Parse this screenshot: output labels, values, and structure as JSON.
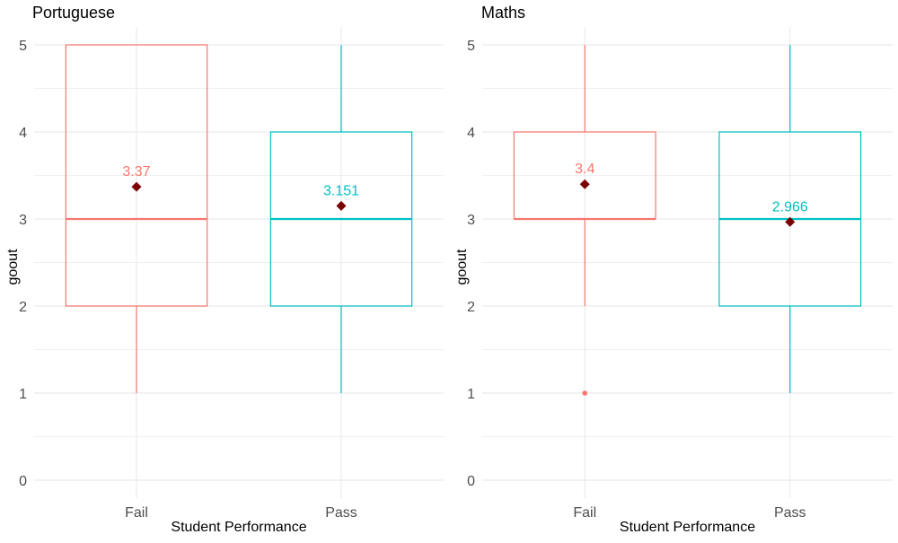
{
  "chart_data": [
    {
      "type": "boxplot",
      "title": "Portuguese",
      "xlabel": "Student Performance",
      "ylabel": "goout",
      "ylim": [
        0,
        5
      ],
      "yticks": [
        0,
        1,
        2,
        3,
        4,
        5
      ],
      "grid": true,
      "categories": [
        "Fail",
        "Pass"
      ],
      "boxes": [
        {
          "category": "Fail",
          "min": 1,
          "q1": 2,
          "median": 3,
          "q3": 5,
          "max": 5,
          "mean": 3.37,
          "mean_label": "3.37",
          "outliers": []
        },
        {
          "category": "Pass",
          "min": 1,
          "q1": 2,
          "median": 3,
          "q3": 4,
          "max": 5,
          "mean": 3.151,
          "mean_label": "3.151",
          "outliers": []
        }
      ]
    },
    {
      "type": "boxplot",
      "title": "Maths",
      "xlabel": "Student Performance",
      "ylabel": "goout",
      "ylim": [
        0,
        5
      ],
      "yticks": [
        0,
        1,
        2,
        3,
        4,
        5
      ],
      "grid": true,
      "categories": [
        "Fail",
        "Pass"
      ],
      "boxes": [
        {
          "category": "Fail",
          "min": 2,
          "q1": 3,
          "median": 3,
          "q3": 4,
          "max": 5,
          "mean": 3.4,
          "mean_label": "3.4",
          "outliers": [
            1
          ]
        },
        {
          "category": "Pass",
          "min": 1,
          "q1": 2,
          "median": 3,
          "q3": 4,
          "max": 5,
          "mean": 2.966,
          "mean_label": "2.966",
          "outliers": []
        }
      ]
    }
  ],
  "colors": {
    "Fail": "#F8766D",
    "Pass": "#00BFC4",
    "mean_marker": "#7B0000",
    "grid": "#EBEBEB",
    "text": "#000000",
    "tick_text": "#4D4D4D"
  }
}
